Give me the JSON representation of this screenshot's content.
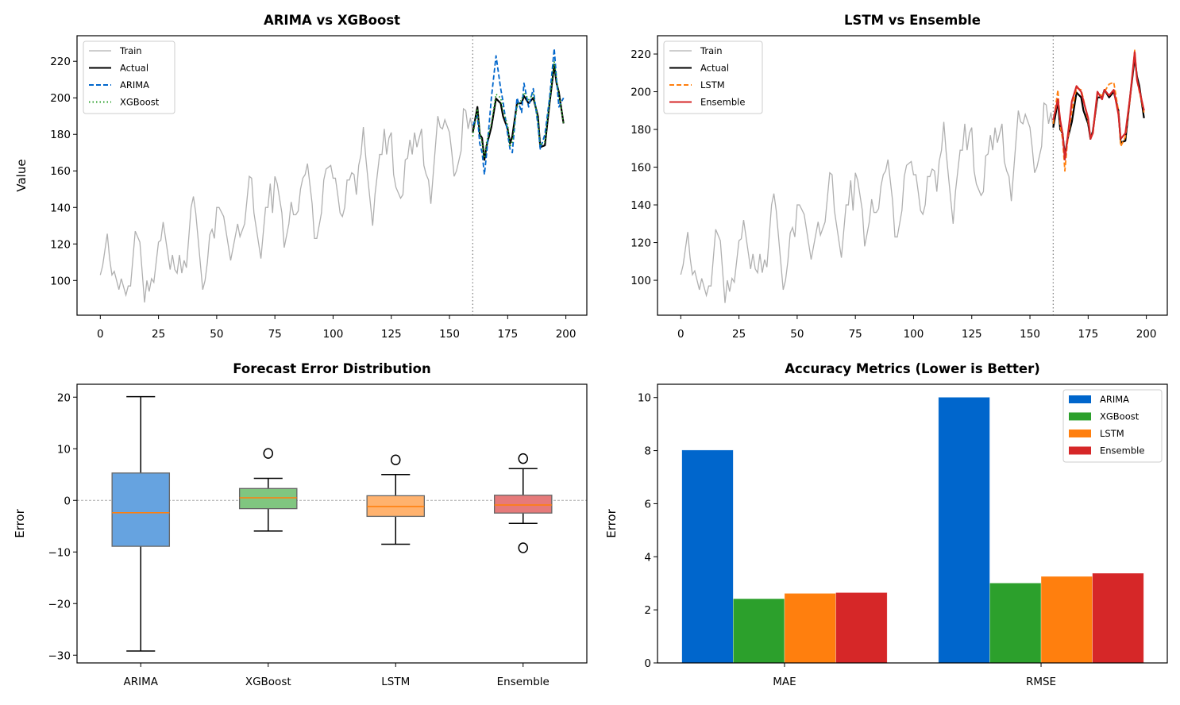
{
  "chart_data": [
    {
      "type": "line",
      "title": "ARIMA vs XGBoost",
      "xlabel": "",
      "ylabel": "Value",
      "xlim": [
        -10,
        209
      ],
      "ylim": [
        81,
        234
      ],
      "xticks": [
        0,
        25,
        50,
        75,
        100,
        125,
        150,
        175,
        200
      ],
      "yticks": [
        100,
        120,
        140,
        160,
        180,
        200,
        220
      ],
      "split_line_x": 160,
      "legend_position": "top-left",
      "train": {
        "name": "Train",
        "color": "#b0b0b0",
        "x": [
          0,
          1,
          3,
          4,
          5,
          6,
          8,
          9,
          11,
          12,
          13,
          15,
          17,
          19,
          20,
          21,
          22,
          23,
          25,
          26,
          27,
          30,
          31,
          32,
          33,
          34,
          35,
          36,
          37,
          39,
          40,
          41,
          44,
          45,
          46,
          47,
          48,
          49,
          50,
          51,
          53,
          56,
          59,
          60,
          62,
          64,
          65,
          66,
          69,
          71,
          72,
          73,
          74,
          75,
          76,
          78,
          79,
          81,
          82,
          83,
          84,
          85,
          86,
          87,
          88,
          89,
          91,
          92,
          93,
          95,
          96,
          97,
          99,
          100,
          101,
          102,
          103,
          104,
          105,
          106,
          107,
          108,
          109,
          110,
          111,
          112,
          113,
          114,
          115,
          117,
          118,
          120,
          121,
          122,
          123,
          124,
          125,
          126,
          127,
          129,
          130,
          131,
          132,
          133,
          134,
          135,
          136,
          138,
          139,
          140,
          141,
          142,
          143,
          145,
          146,
          147,
          148,
          150,
          151,
          152,
          153,
          155,
          156,
          157,
          158,
          159,
          160
        ],
        "y": [
          103,
          108,
          125.6,
          112,
          103,
          105,
          95,
          101,
          92,
          97,
          97,
          127,
          121,
          88,
          100,
          94,
          101,
          99,
          121,
          122,
          132,
          106,
          114,
          106,
          104,
          114,
          104,
          111,
          107,
          140,
          146,
          137,
          95,
          100,
          110,
          125,
          128,
          123,
          140,
          140,
          135,
          111,
          131,
          124,
          131,
          157,
          156,
          137,
          112,
          140,
          140,
          153,
          137,
          157,
          153,
          137,
          118,
          131,
          143,
          136,
          136,
          138,
          150,
          156,
          158,
          164,
          142,
          123,
          123,
          137,
          155,
          161,
          163,
          156,
          156,
          147,
          137,
          135,
          140,
          155,
          155,
          159,
          158,
          147,
          163,
          169,
          184,
          168,
          155,
          130,
          147,
          169,
          169,
          183,
          169,
          178,
          181,
          158,
          151,
          145,
          147,
          166,
          167,
          177,
          169,
          181,
          173,
          183,
          163,
          158,
          155,
          142,
          158,
          190,
          184,
          183,
          188,
          181,
          170,
          157,
          160,
          171,
          194,
          193,
          183,
          189,
          181
        ]
      },
      "test_x": [
        160,
        162,
        163,
        164,
        165,
        166,
        168,
        170,
        172,
        173,
        175,
        176,
        177,
        179,
        181,
        182,
        184,
        186,
        188,
        189,
        191,
        193,
        195,
        196,
        197,
        199
      ],
      "series": [
        {
          "name": "Actual",
          "color": "#000000",
          "style": "solid",
          "values": [
            181,
            195,
            180,
            178,
            166,
            174,
            184,
            199.6,
            197,
            190,
            183,
            175,
            179,
            197,
            197,
            201,
            197,
            200,
            190,
            173,
            174,
            197,
            218,
            208,
            203,
            186
          ]
        },
        {
          "name": "ARIMA",
          "color": "#0066cc",
          "style": "dashed",
          "values": [
            185,
            190,
            175,
            170,
            158,
            170,
            200,
            223,
            205,
            198,
            180,
            172,
            170,
            200,
            192,
            208,
            195,
            205,
            185,
            172,
            180,
            200,
            227,
            210,
            195,
            200
          ]
        },
        {
          "name": "XGBoost",
          "color": "#2ca02c",
          "style": "dotted",
          "values": [
            179,
            194,
            182,
            175,
            167,
            176,
            186,
            202,
            200,
            193,
            185,
            173,
            176,
            195,
            199,
            203,
            199,
            202,
            188,
            174,
            176,
            198,
            220,
            210,
            202,
            186
          ]
        }
      ]
    },
    {
      "type": "line",
      "title": "LSTM vs Ensemble",
      "xlabel": "",
      "ylabel": "",
      "xlim": [
        -10,
        209
      ],
      "ylim": [
        81.5,
        229.7
      ],
      "xticks": [
        0,
        25,
        50,
        75,
        100,
        125,
        150,
        175,
        200
      ],
      "yticks": [
        100,
        120,
        140,
        160,
        180,
        200,
        220
      ],
      "split_line_x": 160,
      "legend_position": "top-left",
      "series": [
        {
          "name": "Actual",
          "color": "#000000",
          "style": "solid",
          "values": [
            181,
            195,
            180,
            178,
            166,
            174,
            184,
            199.6,
            197,
            190,
            183,
            175,
            179,
            197,
            197,
            201,
            197,
            200,
            190,
            173,
            174,
            197,
            218,
            208,
            203,
            186
          ]
        },
        {
          "name": "LSTM",
          "color": "#ff7f0e",
          "style": "dashed",
          "values": [
            183,
            201,
            182,
            175,
            158,
            172,
            190,
            202,
            201,
            196,
            184,
            176,
            177,
            199,
            198,
            200,
            204,
            205,
            190,
            171,
            176,
            196,
            222,
            206,
            200,
            189
          ]
        },
        {
          "name": "Ensemble",
          "color": "#d62728",
          "style": "solid",
          "values": [
            185,
            196,
            185,
            178,
            164,
            174,
            195,
            203,
            200,
            195,
            186,
            175,
            178,
            200,
            196,
            201,
            198,
            201,
            188,
            175,
            178,
            197,
            221,
            206,
            201,
            190
          ]
        }
      ]
    },
    {
      "type": "box",
      "title": "Forecast Error Distribution",
      "xlabel": "",
      "ylabel": "Error",
      "ylim": [
        -31.5,
        22.5
      ],
      "yticks": [
        -30,
        -20,
        -10,
        0,
        10,
        20
      ],
      "zero_line": 0,
      "categories": [
        "ARIMA",
        "XGBoost",
        "LSTM",
        "Ensemble"
      ],
      "boxes": [
        {
          "whislo": -29.2,
          "q1": -8.9,
          "med": -2.4,
          "q3": 5.3,
          "whishi": 20.1,
          "fliers": [],
          "color": "#66a3e0"
        },
        {
          "whislo": -5.95,
          "q1": -1.6,
          "med": 0.5,
          "q3": 2.3,
          "whishi": 4.26,
          "fliers": [
            9.1
          ],
          "color": "#80c680"
        },
        {
          "whislo": -8.5,
          "q1": -3.1,
          "med": -1.2,
          "q3": 0.9,
          "whishi": 5.0,
          "fliers": [
            7.85
          ],
          "color": "#ffb26e"
        },
        {
          "whislo": -4.46,
          "q1": -2.46,
          "med": -0.9,
          "q3": 1.0,
          "whishi": 6.15,
          "fliers": [
            8.1,
            -9.2
          ],
          "color": "#e67a7a"
        }
      ]
    },
    {
      "type": "bar",
      "title": "Accuracy Metrics (Lower is Better)",
      "xlabel": "",
      "ylabel": "Error",
      "ylim": [
        0,
        10.5
      ],
      "yticks": [
        0,
        2,
        4,
        6,
        8,
        10
      ],
      "categories": [
        "MAE",
        "RMSE"
      ],
      "legend_position": "top-right",
      "series": [
        {
          "name": "ARIMA",
          "color": "#0066cc",
          "values": [
            8.02,
            10.01
          ]
        },
        {
          "name": "XGBoost",
          "color": "#2ca02c",
          "values": [
            2.42,
            3.01
          ]
        },
        {
          "name": "LSTM",
          "color": "#ff7f0e",
          "values": [
            2.62,
            3.26
          ]
        },
        {
          "name": "Ensemble",
          "color": "#d62728",
          "values": [
            2.65,
            3.38
          ]
        }
      ]
    }
  ]
}
